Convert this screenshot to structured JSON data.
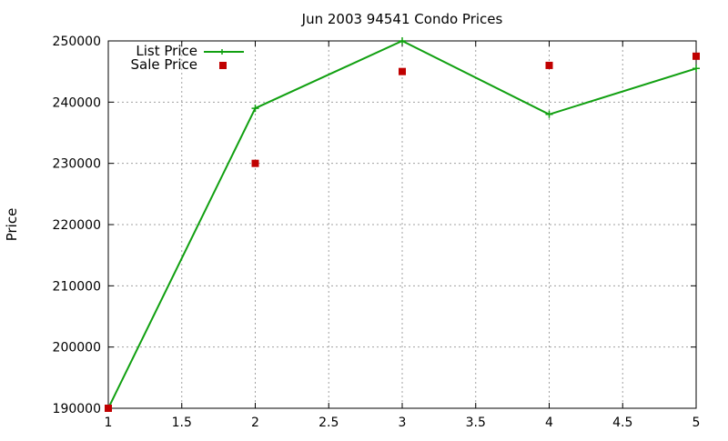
{
  "chart_data": {
    "type": "line",
    "title": "Jun 2003 94541 Condo Prices",
    "xlabel": "",
    "ylabel": "Price",
    "x": [
      1,
      2,
      3,
      4,
      5
    ],
    "xlim": [
      1,
      5
    ],
    "ylim": [
      190000,
      250000
    ],
    "x_ticks": [
      "1",
      "1.5",
      "2",
      "2.5",
      "3",
      "3.5",
      "4",
      "4.5",
      "5"
    ],
    "y_ticks": [
      "190000",
      "200000",
      "210000",
      "220000",
      "230000",
      "240000",
      "250000"
    ],
    "grid": true,
    "legend_position": "top-left",
    "series": [
      {
        "name": "List Price",
        "style": "line-with-plus-markers",
        "color": "#11a011",
        "values": [
          190000,
          239000,
          250000,
          238000,
          245500
        ]
      },
      {
        "name": "Sale Price",
        "style": "square-markers",
        "color": "#c00000",
        "values": [
          190000,
          230000,
          245000,
          246000,
          247500
        ]
      }
    ]
  }
}
